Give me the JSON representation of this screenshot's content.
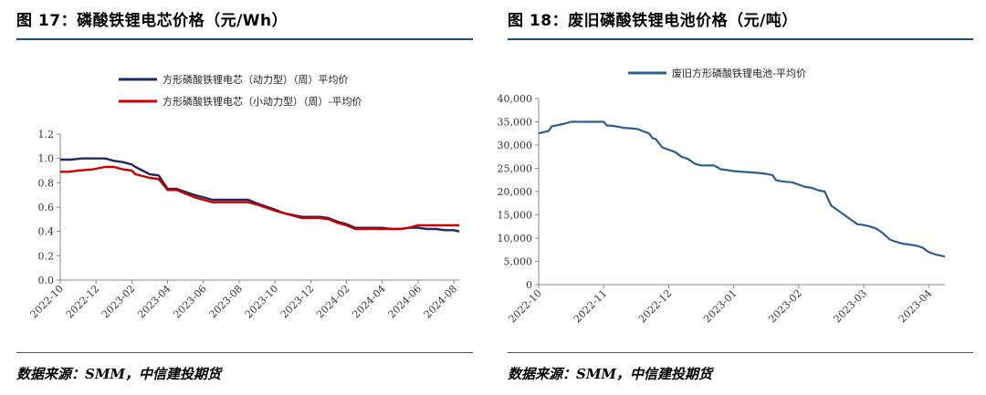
{
  "left": {
    "title": "图 17：磷酸铁锂电芯价格（元/Wh）",
    "source": "数据来源：SMM，中信建投期货"
  },
  "right": {
    "title": "图 18：废旧磷酸铁锂电池价格（元/吨）",
    "source": "数据来源：SMM，中信建投期货"
  },
  "chart_data": [
    {
      "type": "line",
      "title": "磷酸铁锂电芯价格（元/Wh）",
      "xlabel": "",
      "ylabel": "",
      "x_range": [
        "2022-10",
        "2024-08"
      ],
      "ylim": [
        0,
        1.2
      ],
      "yticks": [
        "0.0",
        "0.2",
        "0.4",
        "0.6",
        "0.8",
        "1.0",
        "1.2"
      ],
      "xticks": [
        "2022-10",
        "2022-12",
        "2023-02",
        "2023-04",
        "2023-06",
        "2023-08",
        "2023-10",
        "2023-12",
        "2024-02",
        "2024-04",
        "2024-06",
        "2024-08"
      ],
      "legend_position": "top",
      "series": [
        {
          "name": "方形磷酸铁锂电芯（动力型）（周）平均价",
          "color": "#1f2a5c",
          "x": [
            0,
            0.6,
            1.2,
            2.5,
            3.0,
            3.5,
            4.0,
            4.2,
            5.0,
            5.5,
            6.0,
            6.5,
            7.5,
            8.0,
            8.5,
            9.0,
            9.5,
            10.5,
            11.0,
            12.0,
            12.5,
            13.5,
            14.0,
            14.5,
            15.0,
            15.5,
            16.0,
            16.5,
            17.0,
            17.5,
            18.0,
            18.5,
            19.0,
            19.5,
            20.0,
            20.5,
            21.0,
            21.5,
            22.0,
            22.3
          ],
          "y": [
            0.99,
            0.99,
            1.0,
            1.0,
            0.98,
            0.97,
            0.95,
            0.93,
            0.87,
            0.86,
            0.75,
            0.75,
            0.7,
            0.68,
            0.66,
            0.66,
            0.66,
            0.66,
            0.63,
            0.58,
            0.55,
            0.52,
            0.52,
            0.52,
            0.51,
            0.48,
            0.46,
            0.43,
            0.43,
            0.43,
            0.43,
            0.42,
            0.42,
            0.43,
            0.43,
            0.42,
            0.42,
            0.41,
            0.41,
            0.4
          ]
        },
        {
          "name": "方形磷酸铁锂电芯（小动力型）（周）-平均价",
          "color": "#cc0000",
          "x": [
            0,
            0.5,
            1.0,
            1.8,
            2.5,
            3.0,
            3.5,
            4.0,
            4.2,
            5.0,
            5.5,
            6.0,
            6.5,
            7.5,
            8.0,
            8.5,
            9.0,
            9.5,
            10.5,
            11.0,
            12.0,
            12.5,
            13.5,
            14.0,
            14.5,
            15.0,
            15.5,
            16.0,
            16.5,
            17.0,
            17.5,
            18.0,
            18.5,
            19.0,
            19.5,
            20.0,
            20.5,
            21.0,
            21.5,
            22.0,
            22.3
          ],
          "y": [
            0.89,
            0.89,
            0.9,
            0.91,
            0.93,
            0.93,
            0.91,
            0.9,
            0.87,
            0.84,
            0.83,
            0.74,
            0.74,
            0.68,
            0.66,
            0.64,
            0.64,
            0.64,
            0.64,
            0.62,
            0.57,
            0.55,
            0.51,
            0.51,
            0.51,
            0.5,
            0.47,
            0.45,
            0.42,
            0.42,
            0.42,
            0.42,
            0.42,
            0.42,
            0.43,
            0.45,
            0.45,
            0.45,
            0.45,
            0.45,
            0.45
          ]
        }
      ]
    },
    {
      "type": "line",
      "title": "废旧磷酸铁锂电池价格（元/吨）",
      "xlabel": "",
      "ylabel": "",
      "x_range": [
        "2022-10",
        "2023-04"
      ],
      "ylim": [
        0,
        40000
      ],
      "yticks": [
        "0",
        "5,000",
        "10,000",
        "15,000",
        "20,000",
        "25,000",
        "30,000",
        "35,000",
        "40,000"
      ],
      "xticks": [
        "2022-10",
        "2022-11",
        "2022-12",
        "2023-01",
        "2023-02",
        "2023-03",
        "2023-04"
      ],
      "legend_position": "top",
      "series": [
        {
          "name": "废旧方形磷酸铁锂电池-平均价",
          "color": "#2e5f8a",
          "x": [
            0,
            0.08,
            0.15,
            0.2,
            0.3,
            0.4,
            0.5,
            0.6,
            0.7,
            0.8,
            0.9,
            1.0,
            1.05,
            1.1,
            1.2,
            1.3,
            1.4,
            1.5,
            1.55,
            1.6,
            1.7,
            1.75,
            1.8,
            1.9,
            2.0,
            2.1,
            2.2,
            2.3,
            2.4,
            2.5,
            2.6,
            2.7,
            2.8,
            2.9,
            3.0,
            3.1,
            3.2,
            3.3,
            3.4,
            3.5,
            3.6,
            3.65,
            3.7,
            3.8,
            3.9,
            4.0,
            4.1,
            4.2,
            4.3,
            4.4,
            4.5,
            4.6,
            4.7,
            4.8,
            4.9,
            5.0,
            5.1,
            5.2,
            5.3,
            5.4,
            5.5,
            5.6,
            5.7,
            5.8,
            5.9,
            6.0,
            6.1,
            6.2,
            6.25
          ],
          "y": [
            32500,
            32800,
            33000,
            34000,
            34300,
            34600,
            35000,
            35000,
            35000,
            35000,
            35000,
            35000,
            34200,
            34200,
            34000,
            33700,
            33600,
            33500,
            33300,
            33000,
            32500,
            31500,
            31300,
            29500,
            29000,
            28500,
            27500,
            27000,
            26000,
            25600,
            25600,
            25600,
            24800,
            24600,
            24400,
            24300,
            24200,
            24100,
            24000,
            23800,
            23500,
            22500,
            22300,
            22100,
            22000,
            21500,
            21000,
            20800,
            20300,
            20000,
            17000,
            16000,
            15000,
            14000,
            13000,
            12800,
            12500,
            12000,
            11000,
            9700,
            9200,
            8800,
            8600,
            8400,
            8000,
            7000,
            6500,
            6200,
            6000
          ]
        }
      ]
    }
  ]
}
